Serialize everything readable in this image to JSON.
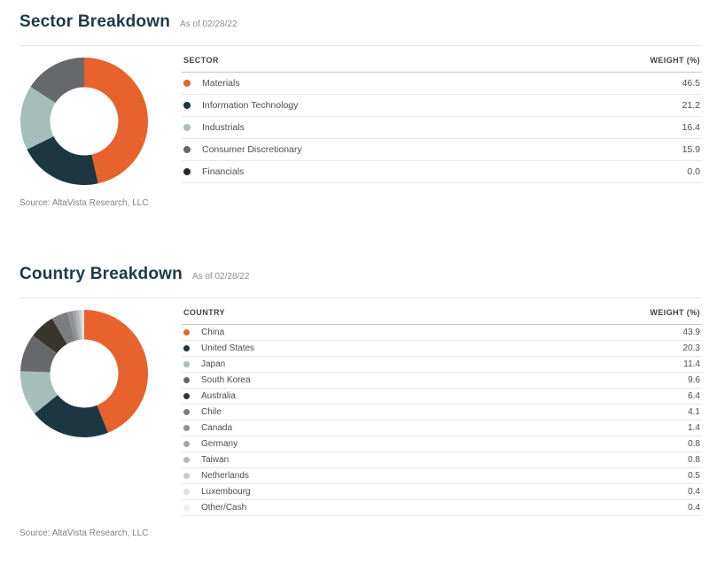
{
  "chart_data": [
    {
      "type": "pie",
      "donut": true,
      "title": "Sector Breakdown",
      "as_of": "As of 02/28/22",
      "source": "Source: AltaVista Research, LLC",
      "columns": {
        "label": "SECTOR",
        "weight": "WEIGHT (%)"
      },
      "categories": [
        "Materials",
        "Information Technology",
        "Industrials",
        "Consumer Discretionary",
        "Financials"
      ],
      "values": [
        46.5,
        21.2,
        16.4,
        15.9,
        0.0
      ],
      "colors": [
        "#E8622D",
        "#1C3742",
        "#A5BEB9",
        "#66686B",
        "#292B2E"
      ],
      "start_angle": 0,
      "direction": "clockwise",
      "legend_position": "right-table",
      "accent_color": "#E8622D"
    },
    {
      "type": "pie",
      "donut": true,
      "title": "Country Breakdown",
      "as_of": "As of 02/28/22",
      "source": "Source: AltaVista Research, LLC",
      "columns": {
        "label": "COUNTRY",
        "weight": "WEIGHT (%)"
      },
      "categories": [
        "China",
        "United States",
        "Japan",
        "South Korea",
        "Australia",
        "Chile",
        "Canada",
        "Germany",
        "Taiwan",
        "Netherlands",
        "Luxembourg",
        "Other/Cash"
      ],
      "values": [
        43.9,
        20.3,
        11.4,
        9.6,
        6.4,
        4.1,
        1.4,
        0.8,
        0.8,
        0.5,
        0.4,
        0.4
      ],
      "colors": [
        "#E8622D",
        "#1C3742",
        "#A5BEB9",
        "#66686B",
        "#38352F",
        "#7C7D80",
        "#8F9194",
        "#A2A4A7",
        "#B5B7B9",
        "#C9CACC",
        "#DCDDDE",
        "#EDEEEE"
      ],
      "start_angle": 0,
      "direction": "clockwise",
      "legend_position": "right-table",
      "accent_color": "#E8622D"
    }
  ]
}
